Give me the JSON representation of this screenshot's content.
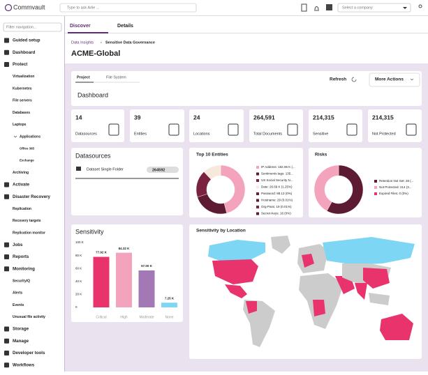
{
  "header": {
    "brand": "Commvault",
    "search_placeholder": "Type to ask Arlie ...",
    "company_placeholder": "Select a company"
  },
  "sidebar": {
    "filter_placeholder": "Filter navigation...",
    "items": [
      {
        "label": "Guided setup",
        "level": 0
      },
      {
        "label": "Dashboard",
        "level": 0
      },
      {
        "label": "Protect",
        "level": 0
      },
      {
        "label": "Virtualization",
        "level": 1
      },
      {
        "label": "Kubernetes",
        "level": 1
      },
      {
        "label": "File servers",
        "level": 1
      },
      {
        "label": "Databases",
        "level": 1
      },
      {
        "label": "Laptops",
        "level": 1
      },
      {
        "label": "Applications",
        "level": 2
      },
      {
        "label": "Office 365",
        "level": 3
      },
      {
        "label": "Exchange",
        "level": 3
      },
      {
        "label": "Archiving",
        "level": 1
      },
      {
        "label": "Activate",
        "level": 0
      },
      {
        "label": "Disaster Recovery",
        "level": 0
      },
      {
        "label": "Replication",
        "level": 1
      },
      {
        "label": "Recovery targets",
        "level": 1
      },
      {
        "label": "Replication monitor",
        "level": 1
      },
      {
        "label": "Jobs",
        "level": 0
      },
      {
        "label": "Reports",
        "level": 0
      },
      {
        "label": "Monitoring",
        "level": 0
      },
      {
        "label": "SecurityIQ",
        "level": 1
      },
      {
        "label": "Alerts",
        "level": 1
      },
      {
        "label": "Events",
        "level": 1
      },
      {
        "label": "Unusual file activity",
        "level": 1
      },
      {
        "label": "Storage",
        "level": 0
      },
      {
        "label": "Manage",
        "level": 0
      },
      {
        "label": "Developer tools",
        "level": 0
      },
      {
        "label": "Workflows",
        "level": 0
      }
    ]
  },
  "tabs": [
    "Discover",
    "Details"
  ],
  "breadcrumb": [
    "Data Insights",
    "Sensitive Data Governance"
  ],
  "page_title": "ACME-Global",
  "dashboard": {
    "subtabs": [
      "Project",
      "File System"
    ],
    "title": "Dashboard",
    "buttons": [
      "Refresh",
      "More Actions"
    ]
  },
  "stats": [
    {
      "value": "14",
      "label": "Datasources"
    },
    {
      "value": "39",
      "label": "Entities"
    },
    {
      "value": "24",
      "label": "Locations"
    },
    {
      "value": "264,591",
      "label": "Total Documents"
    },
    {
      "value": "214,315",
      "label": "Sensitive"
    },
    {
      "value": "214,315",
      "label": "Not Protected"
    }
  ],
  "datasources": {
    "title": "Datasources",
    "rows": [
      {
        "name": "Dataset Single Folder",
        "count": "264592"
      }
    ]
  },
  "entities": {
    "title": "Top 10 Entities",
    "legend": [
      "IP Address: 182.96 K (...",
      "Sentiments tags: 135...",
      "US Social Security N...",
      "Date: 26.69 K (1.25%)",
      "Password: 88.13 (0%)",
      "Hostname: 29 (0.01%)",
      "Org-Pass: 19 (0.01%)",
      "Secret-Keys: 16 (0%)"
    ],
    "values": [
      46,
      24,
      18,
      12,
      0,
      0,
      0,
      0
    ],
    "colors": [
      "#f4a3bd",
      "#5c1a33",
      "#7a2341",
      "#f6e9dc",
      "#6b1f3a",
      "#5c1a33",
      "#7a2341",
      "#5c1a33"
    ]
  },
  "risks": {
    "title": "Risks",
    "legend": [
      "Retention Not Set: 28 (...",
      "Not Protected: 214 (3...",
      "Expired Files: 0 (0%)"
    ],
    "values": [
      58,
      42,
      0
    ],
    "colors": [
      "#5c1a33",
      "#f4a3bd",
      "#e8336d"
    ]
  },
  "sensitivity": {
    "title": "Sensitivity",
    "categories": [
      "Critical",
      "High",
      "Moderate",
      "None"
    ],
    "values": [
      77920,
      84320,
      57000,
      7250
    ],
    "value_labels": [
      "77.92 K",
      "84.32 K",
      "57.00 K",
      "7.25 K"
    ],
    "colors": [
      "#e8336d",
      "#f4a3bd",
      "#a278b5",
      "#7ed6f5"
    ],
    "ylim": [
      0,
      100000
    ],
    "yticks": [
      0,
      {
        "value": 20000,
        "label": "20 K"
      },
      {
        "value": 40000,
        "label": "40 K"
      },
      {
        "value": 60000,
        "label": "60 K"
      },
      {
        "value": 80000,
        "label": "80 K"
      },
      {
        "value": 100000,
        "label": "100 K"
      }
    ]
  },
  "map": {
    "title": "Sensitivity by Location"
  }
}
